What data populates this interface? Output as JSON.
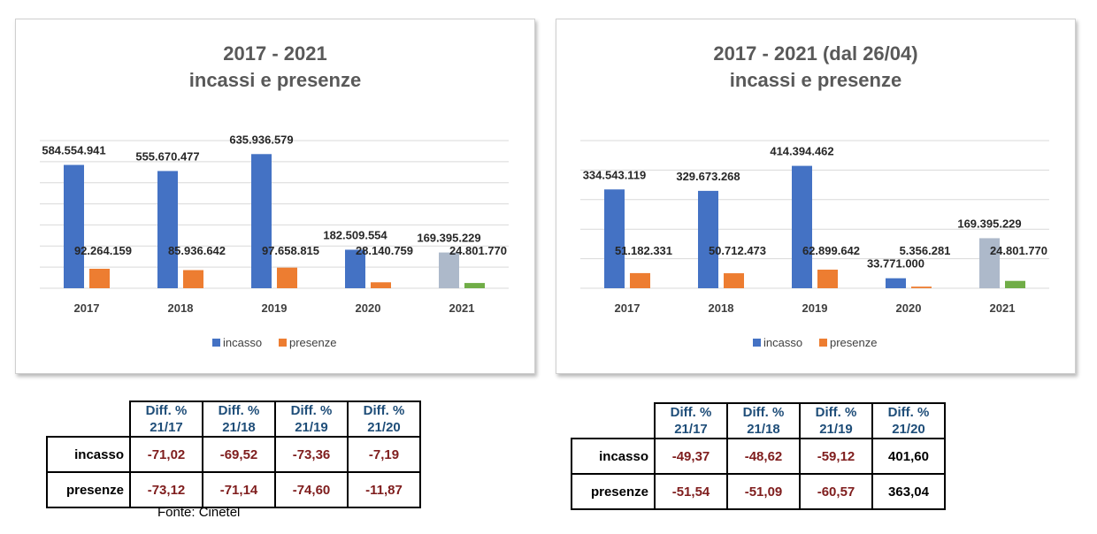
{
  "colors": {
    "incasso": "#4472c4",
    "presenze": "#ed7d31",
    "incasso_2021": "#adb9ca",
    "presenze_2021": "#70ad47",
    "gridline": "#d9d9d9",
    "negative_value": "#7f1d1d",
    "table_header": "#1f4e79"
  },
  "chart_data": [
    {
      "type": "bar",
      "title": "2017 - 2021",
      "subtitle": "incassi e presenze",
      "categories": [
        "2017",
        "2018",
        "2019",
        "2020",
        "2021"
      ],
      "series": [
        {
          "name": "incasso",
          "values": [
            584554941,
            555670477,
            635936579,
            182509554,
            169395229
          ]
        },
        {
          "name": "presenze",
          "values": [
            92264159,
            85936642,
            97658815,
            28140759,
            24801770
          ]
        }
      ],
      "data_labels": {
        "incasso": [
          "584.554.941",
          "555.670.477",
          "635.936.579",
          "182.509.554",
          "169.395.229"
        ],
        "presenze": [
          "92.264.159",
          "85.936.642",
          "97.658.815",
          "28.140.759",
          "24.801.770"
        ]
      },
      "ylim": [
        0,
        700000000
      ],
      "grid": true,
      "legend": "bottom",
      "highlight_last_category": true
    },
    {
      "type": "bar",
      "title": "2017 - 2021 (dal 26/04)",
      "subtitle": "incassi e presenze",
      "categories": [
        "2017",
        "2018",
        "2019",
        "2020",
        "2021"
      ],
      "series": [
        {
          "name": "incasso",
          "values": [
            334543119,
            329673268,
            414394462,
            33771000,
            169395229
          ]
        },
        {
          "name": "presenze",
          "values": [
            51182331,
            50712473,
            62899642,
            5356281,
            24801770
          ]
        }
      ],
      "data_labels": {
        "incasso": [
          "334.543.119",
          "329.673.268",
          "414.394.462",
          "33.771.000",
          "169.395.229"
        ],
        "presenze": [
          "51.182.331",
          "50.712.473",
          "62.899.642",
          "5.356.281",
          "24.801.770"
        ]
      },
      "ylim": [
        0,
        500000000
      ],
      "grid": true,
      "legend": "bottom",
      "highlight_last_category": true
    }
  ],
  "tables": [
    {
      "headers": [
        {
          "line1": "Diff. %",
          "line2": "21/17"
        },
        {
          "line1": "Diff. %",
          "line2": "21/18"
        },
        {
          "line1": "Diff. %",
          "line2": "21/19"
        },
        {
          "line1": "Diff. %",
          "line2": "21/20"
        }
      ],
      "rows": [
        {
          "label": "incasso",
          "values": [
            "-71,02",
            "-69,52",
            "-73,36",
            "-7,19"
          ]
        },
        {
          "label": "presenze",
          "values": [
            "-73,12",
            "-71,14",
            "-74,60",
            "-11,87"
          ]
        }
      ],
      "source": "Fonte: Cinetel"
    },
    {
      "headers": [
        {
          "line1": "Diff. %",
          "line2": "21/17"
        },
        {
          "line1": "Diff. %",
          "line2": "21/18"
        },
        {
          "line1": "Diff. %",
          "line2": "21/19"
        },
        {
          "line1": "Diff. %",
          "line2": "21/20"
        }
      ],
      "rows": [
        {
          "label": "incasso",
          "values": [
            "-49,37",
            "-48,62",
            "-59,12",
            "401,60"
          ]
        },
        {
          "label": "presenze",
          "values": [
            "-51,54",
            "-51,09",
            "-60,57",
            "363,04"
          ]
        }
      ]
    }
  ]
}
